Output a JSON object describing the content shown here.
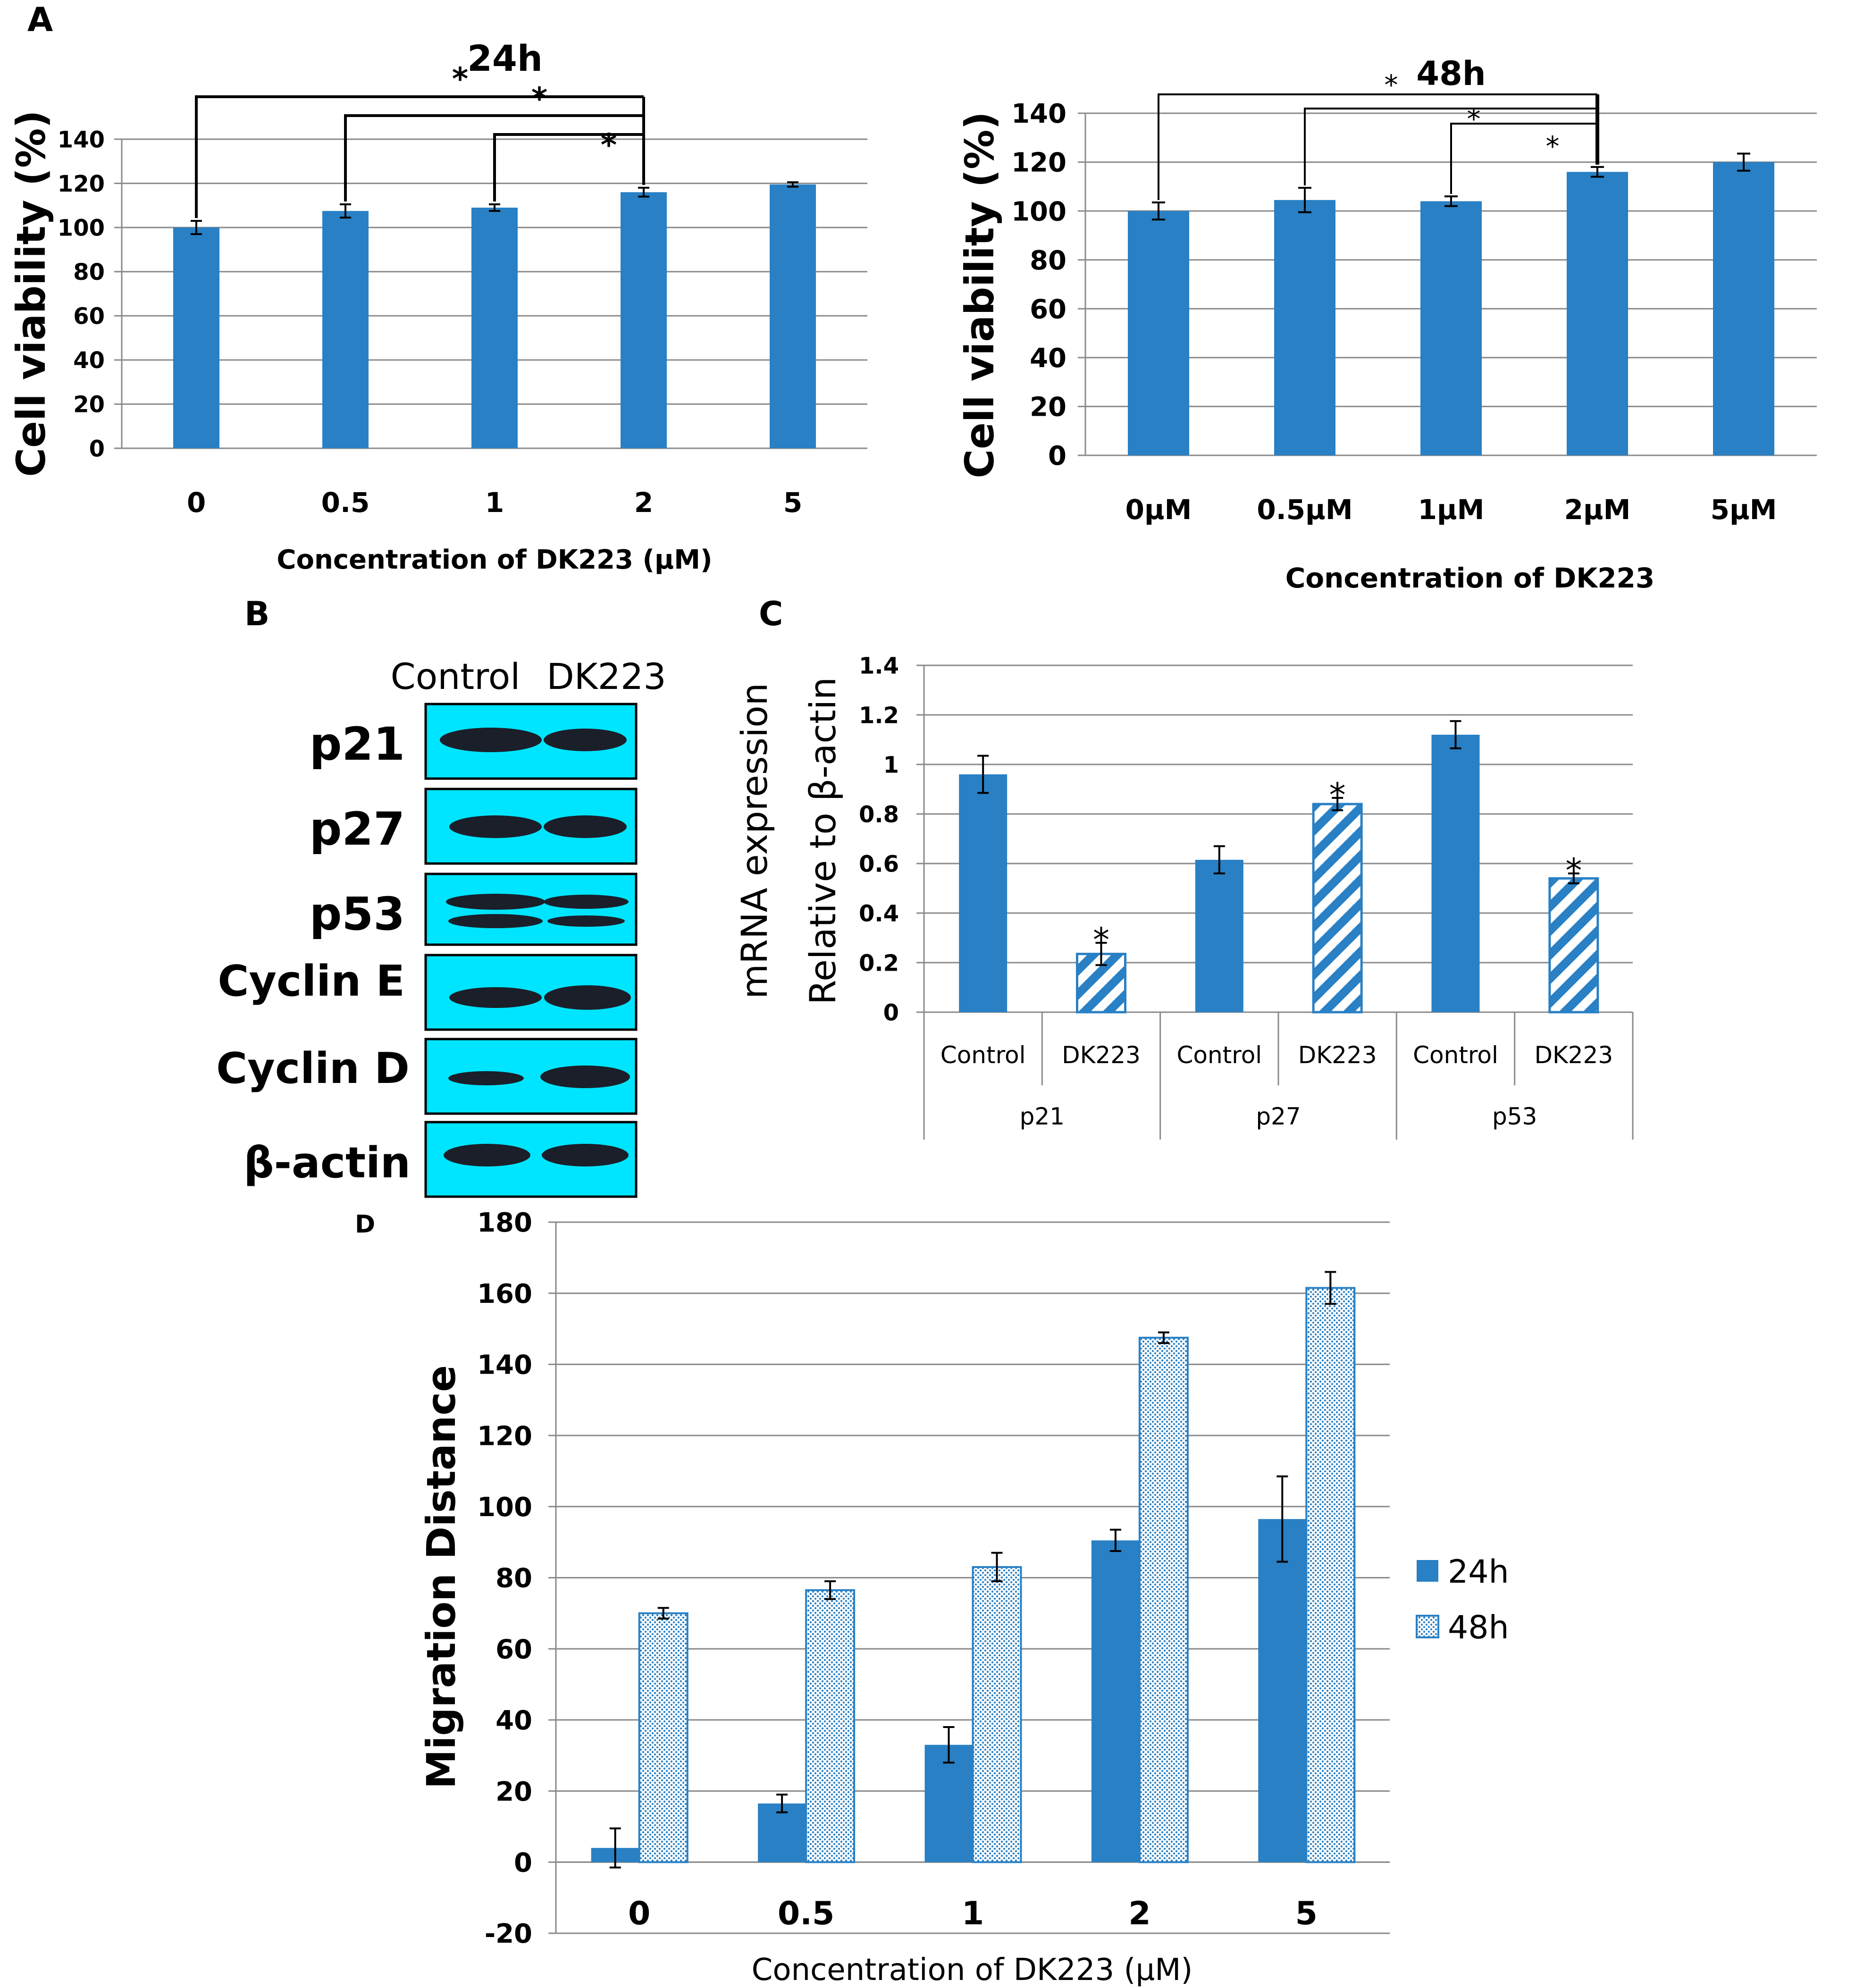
{
  "panels": {
    "a": "A",
    "b": "B",
    "c": "C",
    "d": "D"
  },
  "colors": {
    "bar": "#2980c4",
    "grid": "#8a8a8a",
    "axis": "#8a8a8a",
    "text": "#000000",
    "blot_bg": "#00e5ff",
    "band": "#1a1f2a"
  },
  "chart_data": [
    {
      "id": "a24",
      "type": "bar",
      "panel": "A",
      "annotation": "24h",
      "categories": [
        "0",
        "0.5",
        "1",
        "2",
        "5"
      ],
      "values": [
        100,
        107.5,
        109,
        116,
        119.5
      ],
      "errors": [
        3,
        3,
        1.5,
        2,
        1
      ],
      "xlabel": "Concentration of DK223 (μM)",
      "ylabel": "Cell viability (%)",
      "ylim": [
        0,
        140
      ],
      "yticks": [
        0,
        20,
        40,
        60,
        80,
        100,
        120,
        140
      ],
      "grid": true,
      "significance": [
        {
          "from": "0",
          "to": "2",
          "label": "*"
        },
        {
          "from": "0.5",
          "to": "2",
          "label": "*"
        },
        {
          "from": "1",
          "to": "2",
          "label": "*"
        }
      ]
    },
    {
      "id": "a48",
      "type": "bar",
      "panel": "A",
      "annotation": "48h",
      "categories": [
        "0μM",
        "0.5μM",
        "1μM",
        "2μM",
        "5μM"
      ],
      "values": [
        100,
        104.5,
        104,
        116,
        120
      ],
      "errors": [
        3.5,
        5,
        2,
        2,
        3.5
      ],
      "xlabel": "Concentration of DK223",
      "ylabel": "Cell viability  (%)",
      "ylim": [
        0,
        140
      ],
      "yticks": [
        0,
        20,
        40,
        60,
        80,
        100,
        120,
        140
      ],
      "grid": true,
      "significance": [
        {
          "from": "0μM",
          "to": "2μM",
          "label": "*"
        },
        {
          "from": "0.5μM",
          "to": "2μM",
          "label": "*"
        },
        {
          "from": "1μM",
          "to": "2μM",
          "label": "*"
        }
      ]
    },
    {
      "id": "c",
      "type": "bar",
      "panel": "C",
      "categories": [
        "Control",
        "DK223",
        "Control",
        "DK223",
        "Control",
        "DK223"
      ],
      "groups": [
        "p21",
        "p27",
        "p53"
      ],
      "values": [
        0.96,
        0.235,
        0.615,
        0.84,
        1.12,
        0.54
      ],
      "errors": [
        0.075,
        0.045,
        0.055,
        0.025,
        0.055,
        0.02
      ],
      "treated": [
        false,
        true,
        false,
        true,
        false,
        true
      ],
      "significant": [
        false,
        true,
        false,
        true,
        false,
        true
      ],
      "ylabel": [
        "mRNA expression",
        "Relative to β-actin"
      ],
      "ylim": [
        0,
        1.4
      ],
      "yticks": [
        0,
        0.2,
        0.4,
        0.6,
        0.8,
        1,
        1.2,
        1.4
      ],
      "grid": true
    },
    {
      "id": "d",
      "type": "bar",
      "panel": "D",
      "categories": [
        "0",
        "0.5",
        "1",
        "2",
        "5"
      ],
      "series": [
        {
          "name": "24h",
          "values": [
            4,
            16.5,
            33,
            90.5,
            96.5
          ],
          "errors": [
            5.5,
            2.5,
            5,
            3,
            12
          ],
          "pattern": "solid"
        },
        {
          "name": "48h",
          "values": [
            70,
            76.5,
            83,
            147.5,
            161.5
          ],
          "errors": [
            1.5,
            2.5,
            4,
            1.5,
            4.5
          ],
          "pattern": "dotted"
        }
      ],
      "xlabel": "Concentration of DK223 (μM)",
      "ylabel": "Migration Distance",
      "ylim": [
        -20,
        180
      ],
      "yticks": [
        -20,
        0,
        20,
        40,
        60,
        80,
        100,
        120,
        140,
        160,
        180
      ],
      "grid": true,
      "legend": "right"
    }
  ],
  "blot": {
    "headers": [
      "Control",
      "DK223"
    ],
    "rows": [
      {
        "label": "p21"
      },
      {
        "label": "p27"
      },
      {
        "label": "p53"
      },
      {
        "label": "Cyclin E"
      },
      {
        "label": "Cyclin D"
      },
      {
        "label": "β-actin"
      }
    ]
  }
}
